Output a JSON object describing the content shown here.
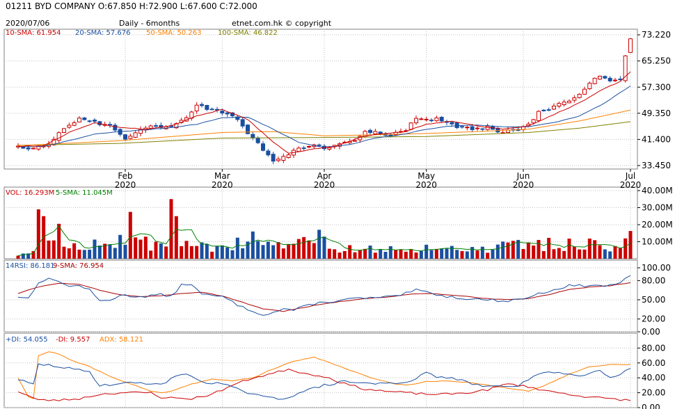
{
  "header": {
    "text": "01211  BYD COMPANY  O:67.850  H:72.900  L:67.600   C:72.000",
    "date": "2020/07/06",
    "period": "Daily - 6months",
    "copyright": "etnet.com.hk © copyright"
  },
  "colors": {
    "up": "#cc0000",
    "down": "#1a4fa0",
    "sma10": "#cc0000",
    "sma20": "#1a4fa0",
    "sma50": "#ff8000",
    "sma100": "#808000",
    "volsma": "#008000",
    "rsi": "#1a4fa0",
    "rsisma": "#aa0000",
    "pdi": "#1a4fa0",
    "mdi": "#cc0000",
    "adx": "#ff8000"
  },
  "chart_data": [
    {
      "type": "candlestick",
      "panel": "price",
      "legend": [
        {
          "label": "10-SMA: 61.954",
          "color": "#cc0000"
        },
        {
          "label": "20-SMA: 57.676",
          "color": "#1a4fa0"
        },
        {
          "label": "50-SMA: 50.263",
          "color": "#ff8000"
        },
        {
          "label": "100-SMA: 46.822",
          "color": "#808000"
        }
      ],
      "y_ticks": [
        "73.220",
        "65.250",
        "57.300",
        "49.350",
        "41.400",
        "33.450"
      ],
      "ylim": [
        33.45,
        73.22
      ],
      "x_ticks": [
        {
          "label": "Feb",
          "year": "2020",
          "day": 21
        },
        {
          "label": "Mar",
          "year": "2020",
          "day": 40
        },
        {
          "label": "Apr",
          "year": "2020",
          "day": 60
        },
        {
          "label": "May",
          "year": "2020",
          "day": 80
        },
        {
          "label": "Jun",
          "year": "2020",
          "day": 99
        },
        {
          "label": "Jul",
          "year": "2020",
          "day": 120
        }
      ],
      "key_prices": [
        [
          0,
          39.2
        ],
        [
          3,
          38.8
        ],
        [
          6,
          40.2
        ],
        [
          9,
          45.0
        ],
        [
          12,
          47.8
        ],
        [
          15,
          46.5
        ],
        [
          18,
          45.4
        ],
        [
          21,
          41.8
        ],
        [
          24,
          44.8
        ],
        [
          27,
          45.5
        ],
        [
          30,
          44.9
        ],
        [
          33,
          47.8
        ],
        [
          35,
          52.2
        ],
        [
          37,
          50.4
        ],
        [
          40,
          49.6
        ],
        [
          42,
          48.8
        ],
        [
          44,
          45.5
        ],
        [
          46,
          41.5
        ],
        [
          48,
          38.5
        ],
        [
          50,
          35.2
        ],
        [
          52,
          35.8
        ],
        [
          54,
          38.5
        ],
        [
          56,
          39.0
        ],
        [
          58,
          40.2
        ],
        [
          60,
          38.4
        ],
        [
          62,
          39.5
        ],
        [
          64,
          40.5
        ],
        [
          66,
          41.2
        ],
        [
          68,
          43.5
        ],
        [
          70,
          43.5
        ],
        [
          72,
          42.2
        ],
        [
          74,
          43.5
        ],
        [
          76,
          44.2
        ],
        [
          78,
          47.8
        ],
        [
          80,
          47.3
        ],
        [
          82,
          47.7
        ],
        [
          84,
          47.0
        ],
        [
          86,
          45.3
        ],
        [
          88,
          44.8
        ],
        [
          90,
          44.5
        ],
        [
          92,
          45.0
        ],
        [
          94,
          43.2
        ],
        [
          96,
          44.2
        ],
        [
          98,
          44.3
        ],
        [
          100,
          46.0
        ],
        [
          102,
          49.5
        ],
        [
          104,
          50.5
        ],
        [
          106,
          52.0
        ],
        [
          108,
          53.0
        ],
        [
          110,
          55.5
        ],
        [
          112,
          58.5
        ],
        [
          114,
          60.8
        ],
        [
          116,
          59.2
        ],
        [
          118,
          60.0
        ],
        [
          119,
          66.8
        ],
        [
          120,
          72.0
        ]
      ],
      "sma10": [
        [
          0,
          39.3
        ],
        [
          5,
          39.5
        ],
        [
          10,
          43.5
        ],
        [
          15,
          46.5
        ],
        [
          20,
          45.0
        ],
        [
          25,
          44.5
        ],
        [
          30,
          45.5
        ],
        [
          35,
          48.5
        ],
        [
          40,
          50.5
        ],
        [
          45,
          47.5
        ],
        [
          50,
          40.5
        ],
        [
          53,
          37.2
        ],
        [
          58,
          38.5
        ],
        [
          62,
          39.2
        ],
        [
          68,
          42.5
        ],
        [
          72,
          43.2
        ],
        [
          76,
          43.8
        ],
        [
          80,
          46.0
        ],
        [
          85,
          47.0
        ],
        [
          90,
          45.5
        ],
        [
          95,
          44.5
        ],
        [
          100,
          45.5
        ],
        [
          105,
          49.0
        ],
        [
          110,
          52.5
        ],
        [
          115,
          57.0
        ],
        [
          118,
          59.0
        ],
        [
          120,
          62.0
        ]
      ],
      "sma20": [
        [
          0,
          39.2
        ],
        [
          5,
          39.3
        ],
        [
          10,
          41.0
        ],
        [
          15,
          43.0
        ],
        [
          20,
          43.8
        ],
        [
          25,
          44.3
        ],
        [
          30,
          45.0
        ],
        [
          35,
          46.0
        ],
        [
          40,
          48.0
        ],
        [
          45,
          48.2
        ],
        [
          50,
          44.5
        ],
        [
          55,
          40.5
        ],
        [
          60,
          39.0
        ],
        [
          65,
          39.8
        ],
        [
          70,
          41.8
        ],
        [
          75,
          42.8
        ],
        [
          80,
          44.5
        ],
        [
          85,
          45.5
        ],
        [
          90,
          45.8
        ],
        [
          95,
          45.2
        ],
        [
          100,
          45.3
        ],
        [
          105,
          46.5
        ],
        [
          110,
          48.5
        ],
        [
          115,
          52.5
        ],
        [
          120,
          57.7
        ]
      ],
      "sma50": [
        [
          0,
          39.5
        ],
        [
          20,
          41.0
        ],
        [
          40,
          43.5
        ],
        [
          50,
          43.8
        ],
        [
          60,
          42.5
        ],
        [
          70,
          42.8
        ],
        [
          80,
          43.2
        ],
        [
          90,
          43.8
        ],
        [
          100,
          44.5
        ],
        [
          110,
          47.0
        ],
        [
          120,
          50.3
        ]
      ],
      "sma100": [
        [
          0,
          39.6
        ],
        [
          20,
          40.2
        ],
        [
          40,
          41.8
        ],
        [
          60,
          42.0
        ],
        [
          80,
          42.3
        ],
        [
          100,
          43.5
        ],
        [
          110,
          44.8
        ],
        [
          120,
          46.8
        ]
      ]
    },
    {
      "type": "bar",
      "panel": "volume",
      "legend": [
        {
          "label": "VOL: 16.293M",
          "color": "#cc0000"
        },
        {
          "label": "5-SMA: 11.045M",
          "color": "#008000"
        }
      ],
      "y_ticks": [
        "40.00M",
        "30.00M",
        "20.00M",
        "10.00M"
      ],
      "ylim": [
        0,
        40
      ],
      "spikes": [
        [
          0,
          1.8
        ],
        [
          4,
          29.0
        ],
        [
          5,
          25.0
        ],
        [
          8,
          20.5
        ],
        [
          20,
          14.0
        ],
        [
          22,
          27.5
        ],
        [
          30,
          35.0
        ],
        [
          31,
          25.0
        ],
        [
          46,
          16.0
        ],
        [
          59,
          17.0
        ],
        [
          120,
          16.3
        ]
      ]
    },
    {
      "type": "line",
      "panel": "rsi",
      "legend": [
        {
          "label": "14RSI: 86.181",
          "color": "#1a4fa0"
        },
        {
          "label": "9-SMA: 76.954",
          "color": "#aa0000"
        }
      ],
      "y_ticks": [
        "100.00",
        "80.00",
        "50.00",
        "20.00",
        "0.00"
      ],
      "ylim": [
        0,
        100
      ],
      "rsi": [
        [
          0,
          55
        ],
        [
          2,
          52
        ],
        [
          4,
          78
        ],
        [
          6,
          82
        ],
        [
          8,
          80
        ],
        [
          10,
          70
        ],
        [
          12,
          73
        ],
        [
          14,
          65
        ],
        [
          16,
          48
        ],
        [
          18,
          50
        ],
        [
          20,
          57
        ],
        [
          24,
          55
        ],
        [
          28,
          58
        ],
        [
          30,
          55
        ],
        [
          32,
          73
        ],
        [
          34,
          75
        ],
        [
          36,
          58
        ],
        [
          40,
          55
        ],
        [
          44,
          38
        ],
        [
          48,
          27
        ],
        [
          50,
          30
        ],
        [
          52,
          36
        ],
        [
          54,
          34
        ],
        [
          58,
          44
        ],
        [
          62,
          48
        ],
        [
          66,
          52
        ],
        [
          70,
          53
        ],
        [
          74,
          55
        ],
        [
          78,
          65
        ],
        [
          80,
          62
        ],
        [
          84,
          55
        ],
        [
          88,
          52
        ],
        [
          92,
          50
        ],
        [
          96,
          48
        ],
        [
          100,
          54
        ],
        [
          104,
          64
        ],
        [
          108,
          72
        ],
        [
          112,
          72
        ],
        [
          116,
          72
        ],
        [
          118,
          78
        ],
        [
          120,
          86
        ]
      ],
      "rsi_sma": [
        [
          0,
          60
        ],
        [
          4,
          70
        ],
        [
          8,
          76
        ],
        [
          12,
          74
        ],
        [
          16,
          65
        ],
        [
          20,
          58
        ],
        [
          24,
          55
        ],
        [
          28,
          56
        ],
        [
          32,
          60
        ],
        [
          36,
          62
        ],
        [
          40,
          56
        ],
        [
          44,
          46
        ],
        [
          48,
          36
        ],
        [
          52,
          32
        ],
        [
          56,
          38
        ],
        [
          60,
          44
        ],
        [
          64,
          48
        ],
        [
          68,
          52
        ],
        [
          72,
          54
        ],
        [
          76,
          58
        ],
        [
          80,
          60
        ],
        [
          84,
          58
        ],
        [
          88,
          55
        ],
        [
          92,
          52
        ],
        [
          96,
          50
        ],
        [
          100,
          52
        ],
        [
          104,
          58
        ],
        [
          108,
          66
        ],
        [
          112,
          70
        ],
        [
          116,
          72
        ],
        [
          120,
          77
        ]
      ]
    },
    {
      "type": "line",
      "panel": "dmi",
      "legend": [
        {
          "label": "+DI: 54.055",
          "color": "#1a4fa0"
        },
        {
          "label": "-DI: 9.557",
          "color": "#cc0000"
        },
        {
          "label": "ADX: 58.121",
          "color": "#ff8000"
        }
      ],
      "y_ticks": [
        "80.00",
        "60.00",
        "40.00",
        "20.00",
        "0.00"
      ],
      "ylim": [
        0,
        85
      ],
      "pdi": [
        [
          0,
          38
        ],
        [
          2,
          33
        ],
        [
          3,
          31
        ],
        [
          4,
          58
        ],
        [
          6,
          57
        ],
        [
          8,
          55
        ],
        [
          12,
          50
        ],
        [
          14,
          48
        ],
        [
          16,
          30
        ],
        [
          20,
          32
        ],
        [
          24,
          34
        ],
        [
          28,
          30
        ],
        [
          30,
          40
        ],
        [
          32,
          45
        ],
        [
          34,
          42
        ],
        [
          36,
          35
        ],
        [
          40,
          32
        ],
        [
          44,
          22
        ],
        [
          48,
          14
        ],
        [
          52,
          12
        ],
        [
          56,
          22
        ],
        [
          60,
          30
        ],
        [
          64,
          35
        ],
        [
          70,
          32
        ],
        [
          76,
          34
        ],
        [
          80,
          46
        ],
        [
          82,
          42
        ],
        [
          86,
          38
        ],
        [
          90,
          30
        ],
        [
          94,
          28
        ],
        [
          98,
          30
        ],
        [
          102,
          45
        ],
        [
          106,
          48
        ],
        [
          110,
          42
        ],
        [
          114,
          50
        ],
        [
          116,
          42
        ],
        [
          118,
          45
        ],
        [
          120,
          54
        ]
      ],
      "mdi": [
        [
          0,
          22
        ],
        [
          2,
          16
        ],
        [
          4,
          10
        ],
        [
          8,
          10
        ],
        [
          12,
          12
        ],
        [
          16,
          18
        ],
        [
          20,
          20
        ],
        [
          26,
          20
        ],
        [
          28,
          14
        ],
        [
          30,
          13
        ],
        [
          34,
          12
        ],
        [
          38,
          18
        ],
        [
          42,
          30
        ],
        [
          46,
          40
        ],
        [
          50,
          46
        ],
        [
          53,
          52
        ],
        [
          56,
          46
        ],
        [
          60,
          42
        ],
        [
          64,
          32
        ],
        [
          68,
          25
        ],
        [
          72,
          22
        ],
        [
          76,
          20
        ],
        [
          80,
          18
        ],
        [
          84,
          18
        ],
        [
          88,
          20
        ],
        [
          92,
          24
        ],
        [
          96,
          32
        ],
        [
          100,
          28
        ],
        [
          104,
          22
        ],
        [
          108,
          18
        ],
        [
          112,
          14
        ],
        [
          116,
          12
        ],
        [
          120,
          9.6
        ]
      ],
      "adx": [
        [
          0,
          40
        ],
        [
          2,
          15
        ],
        [
          3,
          12
        ],
        [
          4,
          70
        ],
        [
          6,
          75
        ],
        [
          8,
          72
        ],
        [
          10,
          65
        ],
        [
          14,
          55
        ],
        [
          18,
          42
        ],
        [
          22,
          32
        ],
        [
          26,
          22
        ],
        [
          28,
          20
        ],
        [
          30,
          22
        ],
        [
          34,
          32
        ],
        [
          38,
          38
        ],
        [
          42,
          36
        ],
        [
          46,
          40
        ],
        [
          50,
          52
        ],
        [
          54,
          62
        ],
        [
          58,
          68
        ],
        [
          62,
          58
        ],
        [
          66,
          48
        ],
        [
          70,
          38
        ],
        [
          74,
          32
        ],
        [
          76,
          30
        ],
        [
          80,
          35
        ],
        [
          84,
          36
        ],
        [
          88,
          34
        ],
        [
          92,
          30
        ],
        [
          96,
          26
        ],
        [
          100,
          22
        ],
        [
          104,
          32
        ],
        [
          108,
          45
        ],
        [
          112,
          55
        ],
        [
          116,
          58
        ],
        [
          120,
          58
        ]
      ]
    }
  ]
}
